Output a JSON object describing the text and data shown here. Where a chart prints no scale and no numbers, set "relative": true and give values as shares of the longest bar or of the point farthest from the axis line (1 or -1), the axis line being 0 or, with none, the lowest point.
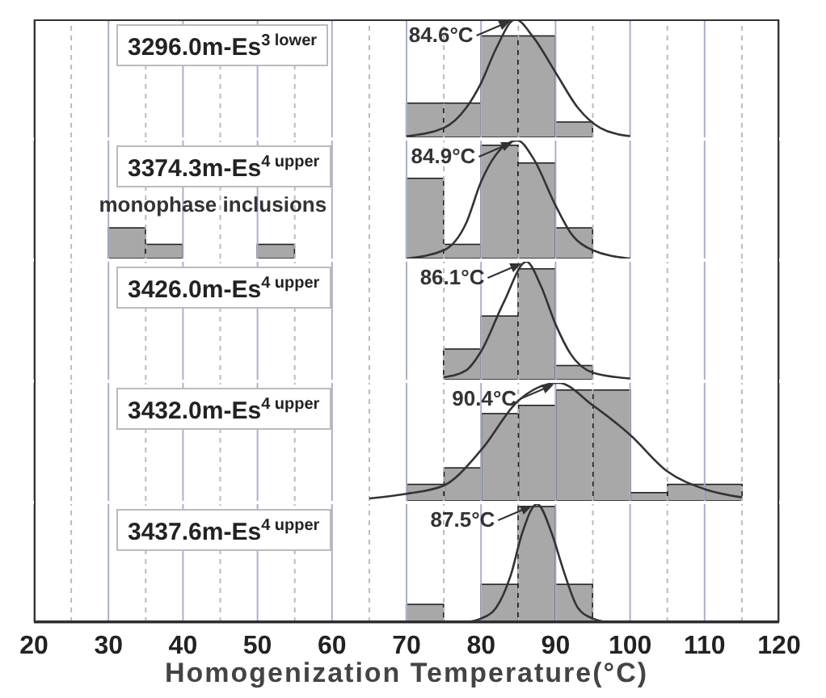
{
  "chart_data": [
    {
      "type": "histogram",
      "relative": true,
      "title": "3296.0m-Es$^{3 lower}$",
      "xlim": [
        20,
        120
      ],
      "xticks": [
        20,
        {
          "value": 25,
          "label": null
        },
        30,
        {
          "value": 35,
          "label": null
        },
        40,
        {
          "value": 45,
          "label": null
        },
        50,
        {
          "value": 55,
          "label": null
        },
        60,
        {
          "value": 65,
          "label": null
        },
        70,
        {
          "value": 75,
          "label": null
        },
        80,
        {
          "value": 85,
          "label": null
        },
        90,
        {
          "value": 95,
          "label": null
        },
        100,
        {
          "value": 105,
          "label": null
        },
        110,
        {
          "value": 115,
          "label": null
        },
        120
      ],
      "grid": "x",
      "tick_labels": false,
      "series": [
        {
          "color": "#a8a8a8",
          "bins": [
            70,
            75,
            80,
            85,
            90,
            95
          ],
          "values": [
            0.29,
            0.29,
            0.86,
            0.86,
            0.13
          ]
        },
        {
          "type": "line",
          "color": "#333333",
          "x": [
            70,
            75,
            78,
            80,
            82,
            84.6,
            87,
            90,
            93,
            96,
            100
          ],
          "values": [
            0.01,
            0.08,
            0.25,
            0.46,
            0.75,
            1,
            0.85,
            0.55,
            0.25,
            0.08,
            0.01
          ]
        }
      ],
      "annotations": [
        {
          "text": "84.6°C",
          "x": 84.6,
          "y": 1
        }
      ]
    },
    {
      "type": "histogram",
      "relative": true,
      "title": "3374.3m-Es$^{4 upper}$",
      "xlim": [
        20,
        120
      ],
      "xticks": [
        20,
        {
          "value": 25,
          "label": null
        },
        30,
        {
          "value": 35,
          "label": null
        },
        40,
        {
          "value": 45,
          "label": null
        },
        50,
        {
          "value": 55,
          "label": null
        },
        60,
        {
          "value": 65,
          "label": null
        },
        70,
        {
          "value": 75,
          "label": null
        },
        80,
        {
          "value": 85,
          "label": null
        },
        90,
        {
          "value": 95,
          "label": null
        },
        100,
        {
          "value": 105,
          "label": null
        },
        110,
        {
          "value": 115,
          "label": null
        },
        120
      ],
      "grid": "x",
      "tick_labels": false,
      "series": [
        {
          "color": "#a8a8a8",
          "bins": [
            30,
            35,
            40,
            45,
            50,
            55,
            60,
            65,
            70,
            75,
            80,
            85,
            90,
            95
          ],
          "values": [
            0.26,
            0.12,
            0,
            0,
            0.12,
            0,
            0,
            0,
            0.68,
            0.12,
            0.96,
            0.81,
            0.26
          ]
        },
        {
          "type": "line",
          "color": "#333333",
          "x": [
            70,
            75,
            78,
            80,
            82,
            84.9,
            87,
            90,
            92,
            95,
            100
          ],
          "values": [
            0,
            0.07,
            0.3,
            0.65,
            0.88,
            1,
            0.85,
            0.45,
            0.22,
            0.07,
            0
          ]
        }
      ],
      "annotations": [
        {
          "text": "84.9°C",
          "x": 84.9,
          "y": 1
        },
        "monophase inclusions"
      ]
    },
    {
      "type": "histogram",
      "relative": true,
      "title": "3426.0m-Es$^{4 upper}$",
      "xlim": [
        20,
        120
      ],
      "xticks": [
        20,
        {
          "value": 25,
          "label": null
        },
        30,
        {
          "value": 35,
          "label": null
        },
        40,
        {
          "value": 45,
          "label": null
        },
        50,
        {
          "value": 55,
          "label": null
        },
        60,
        {
          "value": 65,
          "label": null
        },
        70,
        {
          "value": 75,
          "label": null
        },
        80,
        {
          "value": 85,
          "label": null
        },
        90,
        {
          "value": 95,
          "label": null
        },
        100,
        {
          "value": 105,
          "label": null
        },
        110,
        {
          "value": 115,
          "label": null
        },
        120
      ],
      "grid": "x",
      "tick_labels": false,
      "series": [
        {
          "color": "#a8a8a8",
          "bins": [
            75,
            80,
            85,
            90,
            95
          ],
          "values": [
            0.26,
            0.54,
            0.94,
            0.12
          ]
        },
        {
          "type": "line",
          "color": "#333333",
          "x": [
            75,
            78,
            80,
            83,
            86.1,
            88,
            90,
            92,
            95,
            100
          ],
          "values": [
            0.02,
            0.08,
            0.24,
            0.65,
            1,
            0.8,
            0.47,
            0.22,
            0.06,
            0.01
          ]
        }
      ],
      "annotations": [
        {
          "text": "86.1°C",
          "x": 86.1,
          "y": 1
        }
      ]
    },
    {
      "type": "histogram",
      "relative": true,
      "title": "3432.0m-Es$^{4 upper}$",
      "xlim": [
        20,
        120
      ],
      "xticks": [
        20,
        {
          "value": 25,
          "label": null
        },
        30,
        {
          "value": 35,
          "label": null
        },
        40,
        {
          "value": 45,
          "label": null
        },
        50,
        {
          "value": 55,
          "label": null
        },
        60,
        {
          "value": 65,
          "label": null
        },
        70,
        {
          "value": 75,
          "label": null
        },
        80,
        {
          "value": 85,
          "label": null
        },
        90,
        {
          "value": 95,
          "label": null
        },
        100,
        {
          "value": 105,
          "label": null
        },
        110,
        {
          "value": 115,
          "label": null
        },
        120
      ],
      "grid": "x",
      "tick_labels": false,
      "series": [
        {
          "color": "#a8a8a8",
          "bins": [
            70,
            75,
            80,
            85,
            90,
            95,
            100,
            105,
            110,
            115
          ],
          "values": [
            0.14,
            0.28,
            0.74,
            0.81,
            0.94,
            0.94,
            0.07,
            0.14,
            0.14
          ]
        },
        {
          "type": "line",
          "color": "#333333",
          "x": [
            65,
            70,
            75,
            80,
            85,
            90.4,
            95,
            100,
            105,
            110,
            115
          ],
          "values": [
            0.02,
            0.06,
            0.13,
            0.43,
            0.85,
            1,
            0.81,
            0.56,
            0.25,
            0.1,
            0.03
          ]
        }
      ],
      "annotations": [
        {
          "text": "90.4°C",
          "x": 90.4,
          "y": 1
        }
      ]
    },
    {
      "type": "histogram",
      "relative": true,
      "title": "3437.6m-Es$^{4 upper}$",
      "xlim": [
        20,
        120
      ],
      "xticks": [
        20,
        {
          "value": 25,
          "label": null
        },
        30,
        {
          "value": 35,
          "label": null
        },
        40,
        {
          "value": 45,
          "label": null
        },
        50,
        {
          "value": 55,
          "label": null
        },
        60,
        {
          "value": 65,
          "label": null
        },
        70,
        {
          "value": 75,
          "label": null
        },
        80,
        {
          "value": 85,
          "label": null
        },
        90,
        {
          "value": 95,
          "label": null
        },
        100,
        {
          "value": 105,
          "label": null
        },
        110,
        {
          "value": 115,
          "label": null
        },
        120
      ],
      "grid": "x",
      "tick_labels": "x",
      "xlabel": "Homogenization Temperature(°C)",
      "series": [
        {
          "color": "#a8a8a8",
          "bins": [
            70,
            75,
            80,
            85,
            90,
            95
          ],
          "values": [
            0.15,
            0,
            0.32,
            0.98,
            0.32
          ]
        },
        {
          "type": "line",
          "color": "#333333",
          "x": [
            78,
            80,
            82,
            84,
            85.5,
            87.5,
            89.5,
            91,
            93,
            95,
            97
          ],
          "values": [
            0,
            0.03,
            0.12,
            0.4,
            0.75,
            1,
            0.75,
            0.45,
            0.12,
            0.03,
            0
          ]
        }
      ],
      "annotations": [
        {
          "text": "87.5°C",
          "x": 87.5,
          "y": 1
        }
      ]
    }
  ]
}
